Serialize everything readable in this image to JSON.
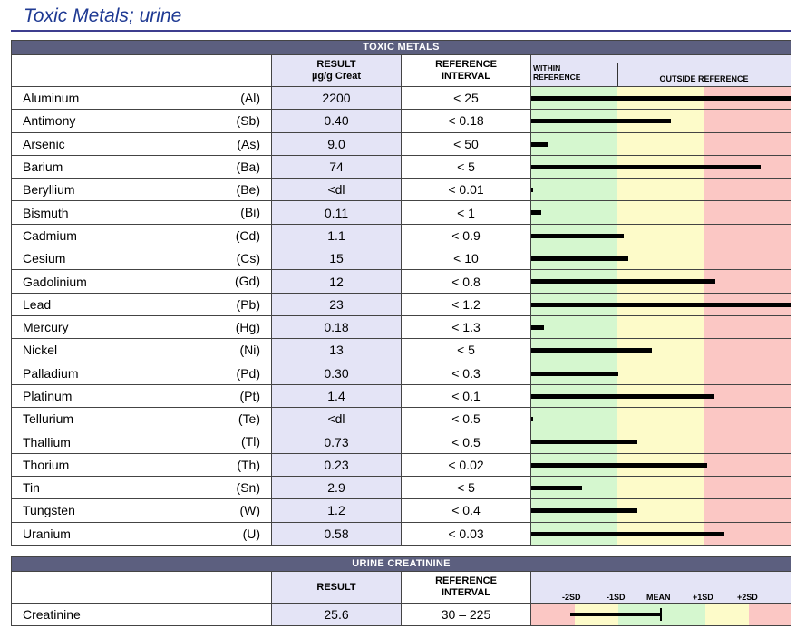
{
  "title": "Toxic Metals; urine",
  "toxic": {
    "section_label": "TOXIC METALS",
    "result_header": "RESULT",
    "result_unit": "µg/g Creat",
    "ref_header_1": "REFERENCE",
    "ref_header_2": "INTERVAL",
    "within_1": "WITHIN",
    "within_2": "REFERENCE",
    "outside": "OUTSIDE REFERENCE",
    "rows": [
      {
        "name": "Aluminum",
        "symbol": "(Al)",
        "result": "2200",
        "ref": "< 25",
        "bar": 1.0
      },
      {
        "name": "Antimony",
        "symbol": "(Sb)",
        "result": "0.40",
        "ref": "< 0.18",
        "bar": 0.54
      },
      {
        "name": "Arsenic",
        "symbol": "(As)",
        "result": "9.0",
        "ref": "< 50",
        "bar": 0.065
      },
      {
        "name": "Barium",
        "symbol": "(Ba)",
        "result": "74",
        "ref": "< 5",
        "bar": 0.885
      },
      {
        "name": "Beryllium",
        "symbol": "(Be)",
        "result": "<dl",
        "ref": "< 0.01",
        "bar": 0.006
      },
      {
        "name": "Bismuth",
        "symbol": "(Bi)",
        "result": "0.11",
        "ref": "< 1",
        "bar": 0.04
      },
      {
        "name": "Cadmium",
        "symbol": "(Cd)",
        "result": "1.1",
        "ref": "< 0.9",
        "bar": 0.355
      },
      {
        "name": "Cesium",
        "symbol": "(Cs)",
        "result": "15",
        "ref": "< 10",
        "bar": 0.375
      },
      {
        "name": "Gadolinium",
        "symbol": "(Gd)",
        "result": "12",
        "ref": "< 0.8",
        "bar": 0.71
      },
      {
        "name": "Lead",
        "symbol": "(Pb)",
        "result": "23",
        "ref": "< 1.2",
        "bar": 1.0
      },
      {
        "name": "Mercury",
        "symbol": "(Hg)",
        "result": "0.18",
        "ref": "< 1.3",
        "bar": 0.05
      },
      {
        "name": "Nickel",
        "symbol": "(Ni)",
        "result": "13",
        "ref": "< 5",
        "bar": 0.465
      },
      {
        "name": "Palladium",
        "symbol": "(Pd)",
        "result": "0.30",
        "ref": "< 0.3",
        "bar": 0.335
      },
      {
        "name": "Platinum",
        "symbol": "(Pt)",
        "result": "1.4",
        "ref": "< 0.1",
        "bar": 0.705
      },
      {
        "name": "Tellurium",
        "symbol": "(Te)",
        "result": "<dl",
        "ref": "< 0.5",
        "bar": 0.006
      },
      {
        "name": "Thallium",
        "symbol": "(Tl)",
        "result": "0.73",
        "ref": "< 0.5",
        "bar": 0.41
      },
      {
        "name": "Thorium",
        "symbol": "(Th)",
        "result": "0.23",
        "ref": "< 0.02",
        "bar": 0.68
      },
      {
        "name": "Tin",
        "symbol": "(Sn)",
        "result": "2.9",
        "ref": "< 5",
        "bar": 0.195
      },
      {
        "name": "Tungsten",
        "symbol": "(W)",
        "result": "1.2",
        "ref": "< 0.4",
        "bar": 0.41
      },
      {
        "name": "Uranium",
        "symbol": "(U)",
        "result": "0.58",
        "ref": "< 0.03",
        "bar": 0.745
      }
    ]
  },
  "creatinine": {
    "section_label": "URINE CREATININE",
    "result_header": "RESULT",
    "ref_header_1": "REFERENCE",
    "ref_header_2": "INTERVAL",
    "sd_labels": [
      "-2SD",
      "-1SD",
      "MEAN",
      "+1SD",
      "+2SD"
    ],
    "name": "Creatinine",
    "result": "25.6",
    "ref": "30 – 225"
  },
  "colors": {
    "green": "#d5f7cf",
    "yellow": "#fdfbc9",
    "red": "#fbc7c4",
    "title": "#1f3a93",
    "header_bg": "#5c5f7f",
    "result_bg": "#e4e4f6"
  }
}
